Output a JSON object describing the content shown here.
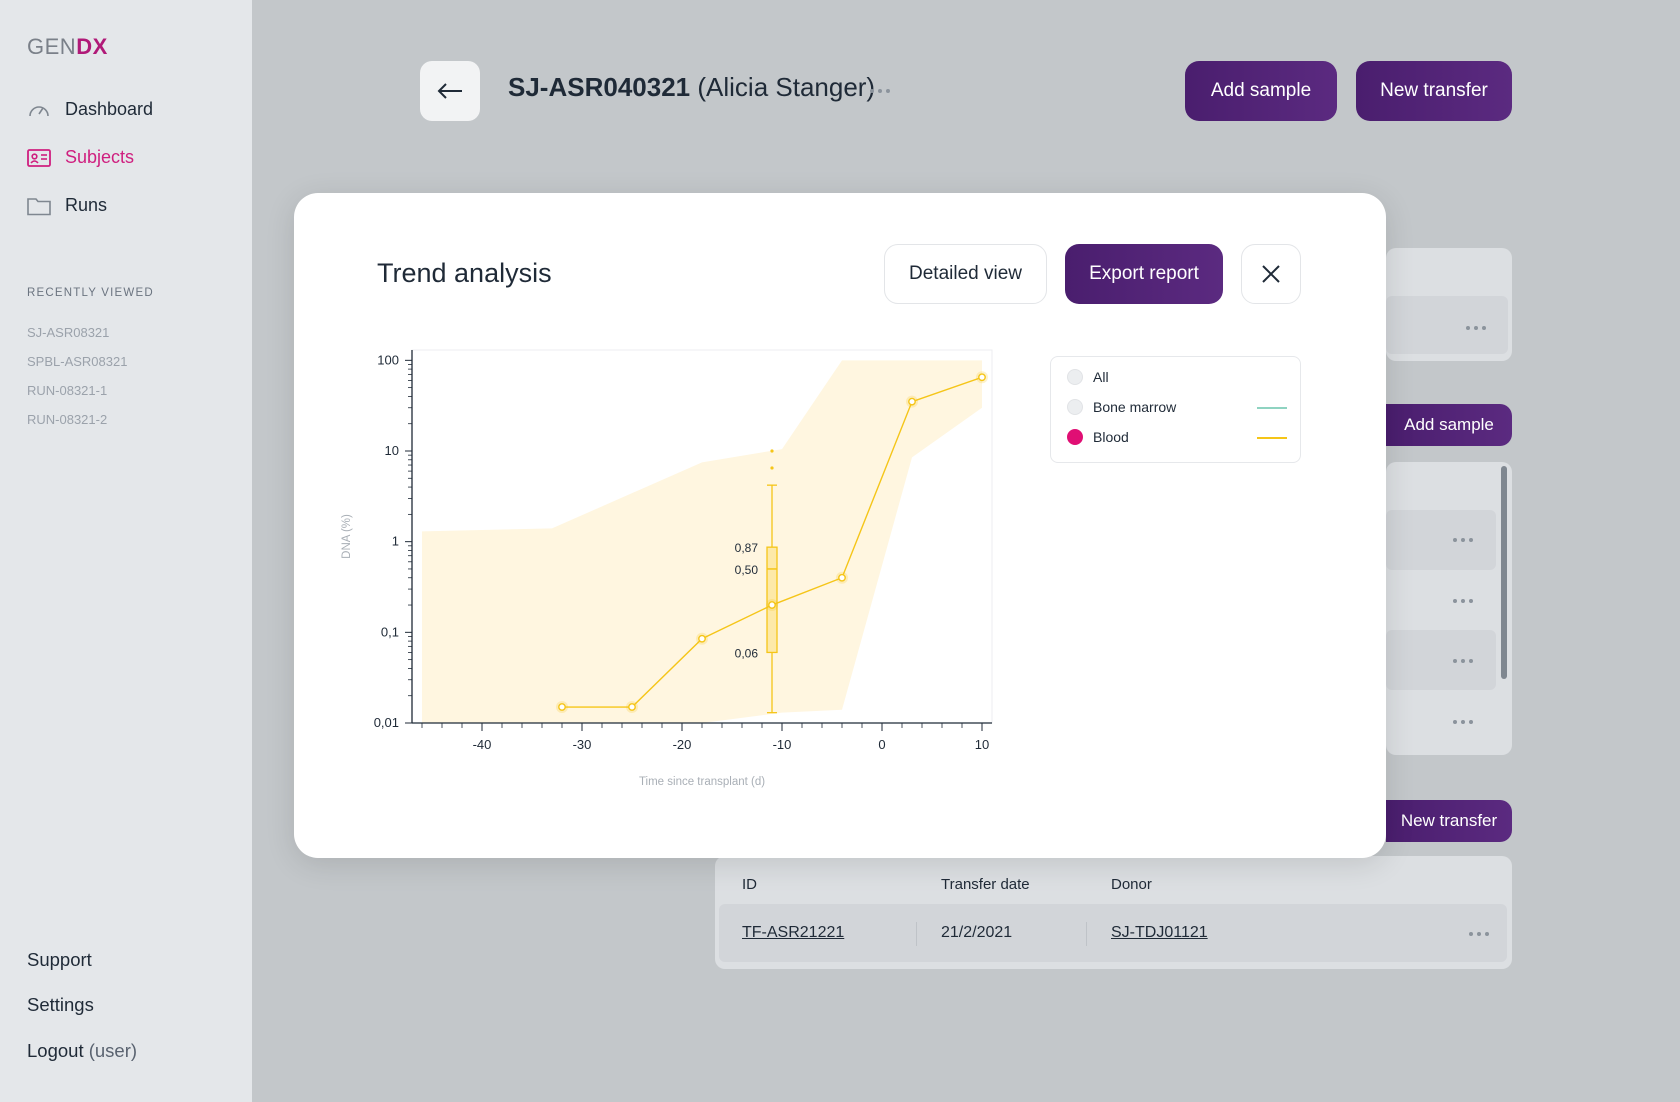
{
  "logo": {
    "gen": "GEN",
    "dx": "DX"
  },
  "nav": [
    {
      "label": "Dashboard",
      "icon": "gauge-icon"
    },
    {
      "label": "Subjects",
      "icon": "id-card-icon",
      "active": true
    },
    {
      "label": "Runs",
      "icon": "folder-icon"
    }
  ],
  "recent": {
    "title": "RECENTLY VIEWED",
    "items": [
      "SJ-ASR08321",
      "SPBL-ASR08321",
      "RUN-08321-1",
      "RUN-08321-2"
    ]
  },
  "bottom": {
    "support": "Support",
    "settings": "Settings",
    "logout": "Logout",
    "user": "(user)"
  },
  "header": {
    "subject_id": "SJ-ASR040321",
    "subject_name": "(Alicia Stanger)",
    "add_sample": "Add sample",
    "new_transfer": "New transfer"
  },
  "background": {
    "add_sample": "Add sample",
    "new_transfer": "New transfer",
    "table": {
      "headers": [
        "ID",
        "Transfer date",
        "Donor"
      ],
      "rows": [
        [
          "TF-ASR21221",
          "21/2/2021",
          "SJ-TDJ01121"
        ]
      ]
    }
  },
  "modal": {
    "title": "Trend analysis",
    "detailed_view": "Detailed view",
    "export_report": "Export report"
  },
  "legend": [
    {
      "label": "All",
      "color": null,
      "selected": false
    },
    {
      "label": "Bone marrow",
      "color": "#8fd3c1",
      "selected": false
    },
    {
      "label": "Blood",
      "color": "#f5c518",
      "selected": true
    }
  ],
  "colors": {
    "accent": "#e00f74",
    "brand_purple": "#4a1e6e",
    "series": "#f5c518",
    "band": "#fff6e0"
  },
  "chart_data": {
    "type": "line",
    "xlabel": "Time since transplant (d)",
    "ylabel": "DNA (%)",
    "x_ticks": [
      -40,
      -30,
      -20,
      -10,
      0,
      10
    ],
    "x_tick_labels": [
      "-40",
      "-30",
      "-20",
      "-10",
      "0",
      "10"
    ],
    "y_ticks": [
      0.01,
      0.1,
      1,
      10,
      100
    ],
    "y_tick_labels": [
      "0,01",
      "0,1",
      "1",
      "10",
      "100"
    ],
    "y_scale": "log",
    "xlim": [
      -47,
      11
    ],
    "ylim": [
      0.01,
      130
    ],
    "grid": false,
    "series": [
      {
        "name": "Blood",
        "color": "#f5c518",
        "x": [
          -32,
          -25,
          -18,
          -11,
          -4,
          3,
          10
        ],
        "y": [
          0.015,
          0.015,
          0.085,
          0.2,
          0.4,
          35,
          65
        ]
      }
    ],
    "band": {
      "x": [
        -46,
        -33,
        -18,
        -10,
        -4,
        3,
        10
      ],
      "upper": [
        1.3,
        1.4,
        7.5,
        10.5,
        100,
        100,
        100
      ],
      "lower": [
        0.01,
        0.01,
        0.01,
        0.013,
        0.014,
        8.5,
        30
      ]
    },
    "boxplot": {
      "x": -11,
      "whisker_low": 0.013,
      "q1": 0.06,
      "median": 0.5,
      "q3": 0.87,
      "whisker_high": 4.2,
      "outliers": [
        6.5,
        10
      ],
      "labels": [
        "0,87",
        "0,50",
        "0,06"
      ]
    }
  }
}
